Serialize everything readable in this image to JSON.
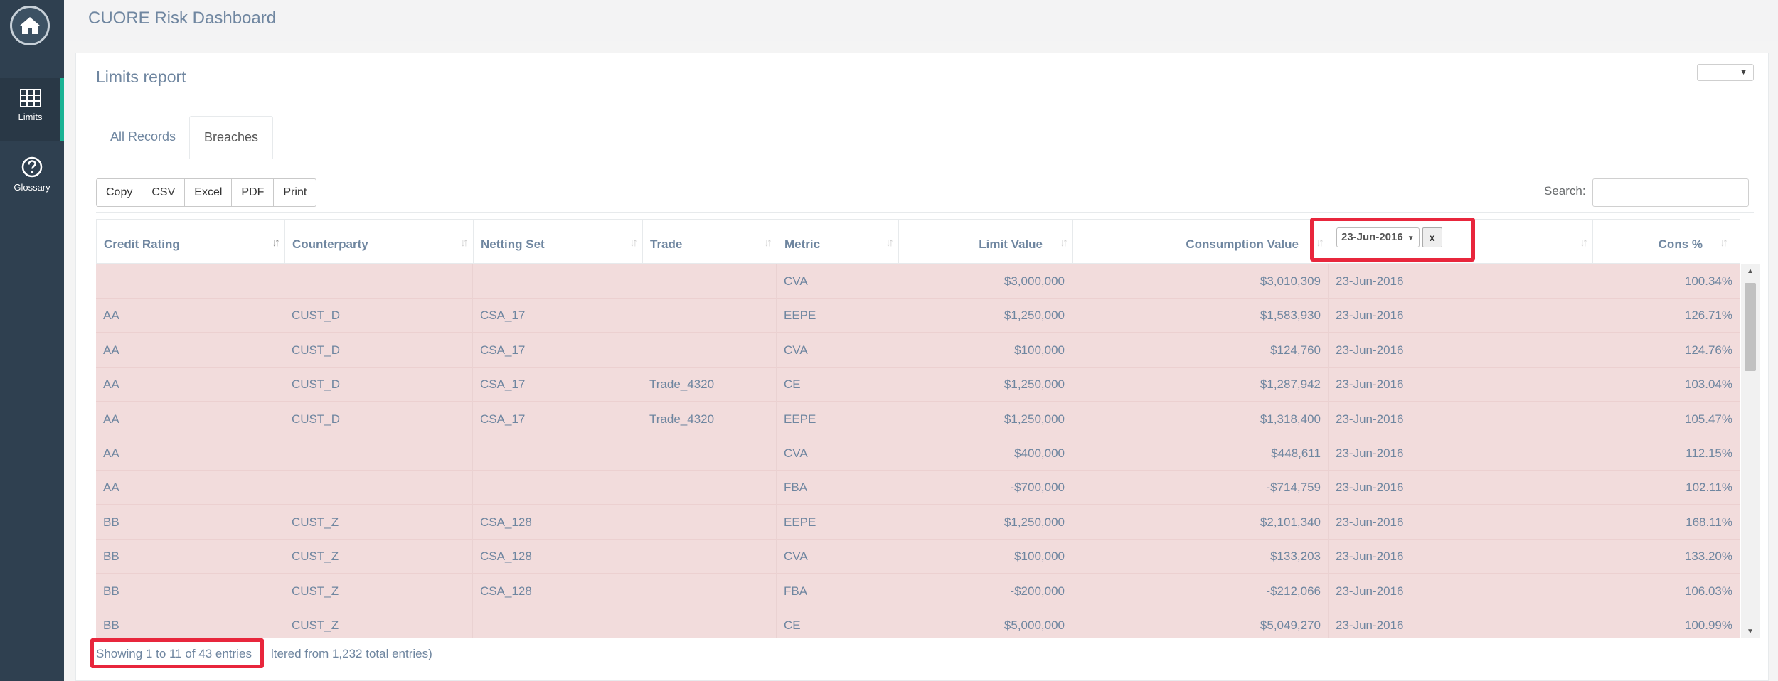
{
  "app": {
    "title": "CUORE Risk Dashboard"
  },
  "sidebar": {
    "items": [
      {
        "label": "Limits",
        "icon": "table-icon",
        "active": true
      },
      {
        "label": "Glossary",
        "icon": "question-circle-icon",
        "active": false
      }
    ]
  },
  "panel": {
    "title": "Limits report",
    "select_value": ""
  },
  "tabs": [
    {
      "label": "All Records",
      "active": false
    },
    {
      "label": "Breaches",
      "active": true
    }
  ],
  "buttons": [
    "Copy",
    "CSV",
    "Excel",
    "PDF",
    "Print"
  ],
  "search": {
    "label": "Search:",
    "value": ""
  },
  "table": {
    "columns": [
      "Credit Rating",
      "Counterparty",
      "Netting Set",
      "Trade",
      "Metric",
      "Limit Value",
      "Consumption Value",
      "",
      "Cons %"
    ],
    "date_filter": {
      "value": "23-Jun-2016",
      "clear_label": "x"
    },
    "rows": [
      [
        "",
        "",
        "",
        "",
        "CVA",
        "$3,000,000",
        "$3,010,309",
        "23-Jun-2016",
        "100.34%"
      ],
      [
        "AA",
        "CUST_D",
        "CSA_17",
        "",
        "EEPE",
        "$1,250,000",
        "$1,583,930",
        "23-Jun-2016",
        "126.71%"
      ],
      [
        "AA",
        "CUST_D",
        "CSA_17",
        "",
        "CVA",
        "$100,000",
        "$124,760",
        "23-Jun-2016",
        "124.76%"
      ],
      [
        "AA",
        "CUST_D",
        "CSA_17",
        "Trade_4320",
        "CE",
        "$1,250,000",
        "$1,287,942",
        "23-Jun-2016",
        "103.04%"
      ],
      [
        "AA",
        "CUST_D",
        "CSA_17",
        "Trade_4320",
        "EEPE",
        "$1,250,000",
        "$1,318,400",
        "23-Jun-2016",
        "105.47%"
      ],
      [
        "AA",
        "",
        "",
        "",
        "CVA",
        "$400,000",
        "$448,611",
        "23-Jun-2016",
        "112.15%"
      ],
      [
        "AA",
        "",
        "",
        "",
        "FBA",
        "-$700,000",
        "-$714,759",
        "23-Jun-2016",
        "102.11%"
      ],
      [
        "BB",
        "CUST_Z",
        "CSA_128",
        "",
        "EEPE",
        "$1,250,000",
        "$2,101,340",
        "23-Jun-2016",
        "168.11%"
      ],
      [
        "BB",
        "CUST_Z",
        "CSA_128",
        "",
        "CVA",
        "$100,000",
        "$133,203",
        "23-Jun-2016",
        "133.20%"
      ],
      [
        "BB",
        "CUST_Z",
        "CSA_128",
        "",
        "FBA",
        "-$200,000",
        "-$212,066",
        "23-Jun-2016",
        "106.03%"
      ],
      [
        "BB",
        "CUST_Z",
        "",
        "",
        "CE",
        "$5,000,000",
        "$5,049,270",
        "23-Jun-2016",
        "100.99%"
      ]
    ]
  },
  "footer": {
    "showing": "Showing 1 to 11 of 43 entries",
    "filtered": "ltered from 1,232 total entries)"
  },
  "colors": {
    "sidebar": "#2f4050",
    "accent": "#1ab394",
    "breach_row": "#f2dcdc",
    "highlight": "#e8263c"
  }
}
